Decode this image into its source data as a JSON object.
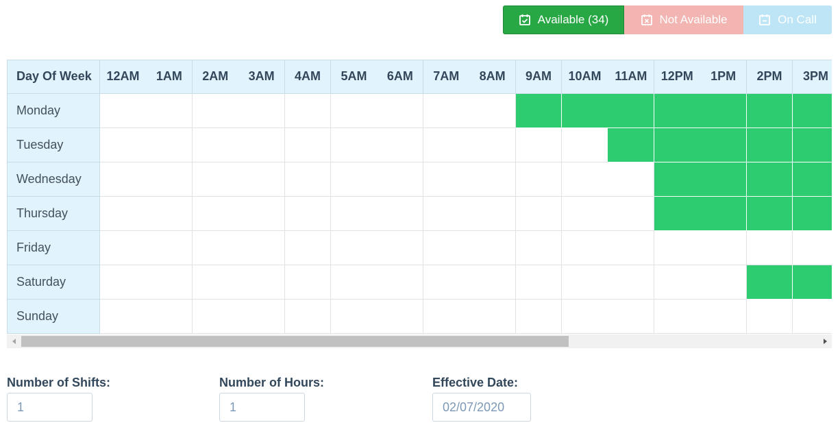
{
  "status_buttons": {
    "available": {
      "label": "Available (34)",
      "icon": "calendar-check-icon",
      "color": "#28a745"
    },
    "not_available": {
      "label": "Not Available",
      "icon": "calendar-x-icon",
      "color": "#f2b5b2"
    },
    "on_call": {
      "label": "On Call",
      "icon": "calendar-minus-icon",
      "color": "#bde5f5"
    }
  },
  "schedule": {
    "header_label": "Day Of Week",
    "hours": [
      "12AM",
      "1AM",
      "2AM",
      "3AM",
      "4AM",
      "5AM",
      "6AM",
      "7AM",
      "8AM",
      "9AM",
      "10AM",
      "11AM",
      "12PM",
      "1PM",
      "2PM",
      "3PM"
    ],
    "available_color": "#2ecc71",
    "days": [
      {
        "label": "Monday",
        "available_hours": [
          "9AM",
          "10AM",
          "11AM",
          "12PM",
          "1PM",
          "2PM",
          "3PM"
        ]
      },
      {
        "label": "Tuesday",
        "available_hours": [
          "11AM",
          "12PM",
          "1PM",
          "2PM",
          "3PM"
        ]
      },
      {
        "label": "Wednesday",
        "available_hours": [
          "12PM",
          "1PM",
          "2PM",
          "3PM"
        ]
      },
      {
        "label": "Thursday",
        "available_hours": [
          "12PM",
          "1PM",
          "2PM",
          "3PM"
        ]
      },
      {
        "label": "Friday",
        "available_hours": []
      },
      {
        "label": "Saturday",
        "available_hours": [
          "2PM",
          "3PM"
        ]
      },
      {
        "label": "Sunday",
        "available_hours": []
      }
    ]
  },
  "form": {
    "shifts": {
      "label": "Number of Shifts:",
      "value": "1"
    },
    "hours": {
      "label": "Number of Hours:",
      "value": "1"
    },
    "effective_date": {
      "label": "Effective Date:",
      "value": "02/07/2020"
    }
  }
}
